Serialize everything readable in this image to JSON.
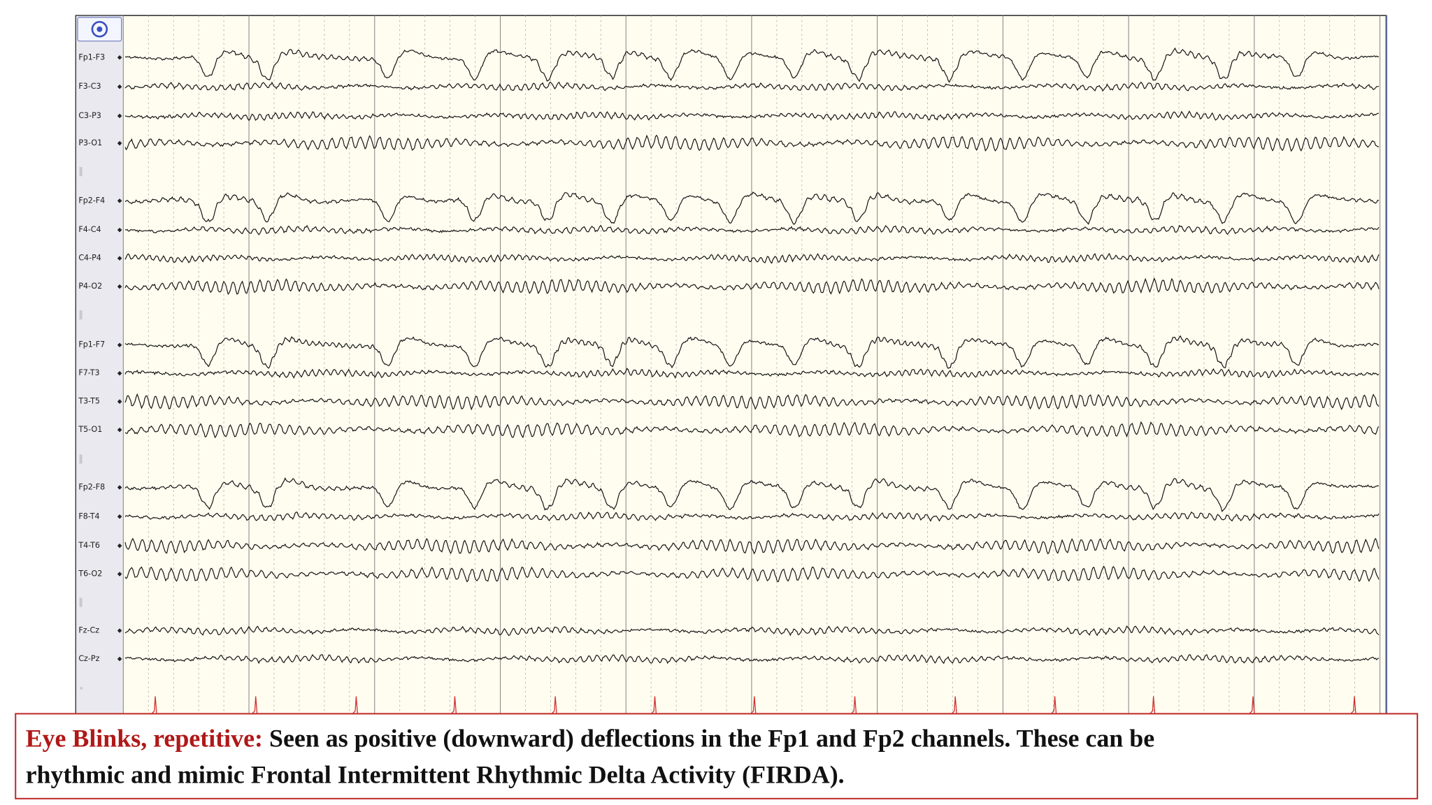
{
  "channels": [
    "Fp1-F3",
    "F3-C3",
    "C3-P3",
    "P3-O1",
    "Fp2-F4",
    "F4-C4",
    "C4-P4",
    "P4-O2",
    "Fp1-F7",
    "F7-T3",
    "T3-T5",
    "T5-O1",
    "Fp2-F8",
    "F8-T4",
    "T4-T6",
    "T6-O2",
    "Fz-Cz",
    "Cz-Pz"
  ],
  "caption": {
    "label": "Eye Blinks, repetitive:",
    "line1": "Seen as positive (downward) deflections in the Fp1 and Fp2 channels. These can be",
    "line2": "rhythmic and mimic Frontal Intermittent Rhythmic Delta Activity (FIRDA)."
  }
}
